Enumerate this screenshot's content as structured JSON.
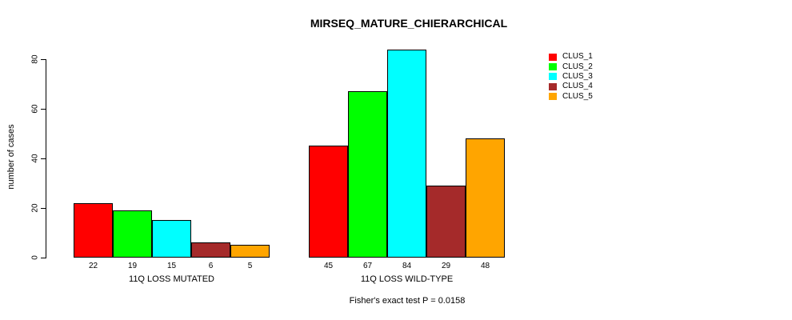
{
  "chart_data": {
    "type": "bar",
    "title": "MIRSEQ_MATURE_CHIERARCHICAL",
    "categories": [
      "11Q LOSS MUTATED",
      "11Q LOSS WILD-TYPE"
    ],
    "series": [
      {
        "name": "CLUS_1",
        "color": "#FF0000",
        "values": [
          22,
          45
        ]
      },
      {
        "name": "CLUS_2",
        "color": "#00FF00",
        "values": [
          19,
          67
        ]
      },
      {
        "name": "CLUS_3",
        "color": "#00FFFF",
        "values": [
          15,
          84
        ]
      },
      {
        "name": "CLUS_4",
        "color": "#A52A2A",
        "values": [
          6,
          29
        ]
      },
      {
        "name": "CLUS_5",
        "color": "#FFA500",
        "values": [
          5,
          48
        ]
      }
    ],
    "xlabel": "",
    "ylabel": "number of cases",
    "ylim": [
      0,
      80
    ],
    "yticks": [
      0,
      20,
      40,
      60,
      80
    ],
    "bar_value_labels": true,
    "grid": false,
    "legend_position": "right",
    "annotation": "Fisher's exact test P = 0.0158",
    "colors": {
      "background": "#FFFFFF",
      "bar_border": "#000000",
      "text": "#000000"
    }
  }
}
